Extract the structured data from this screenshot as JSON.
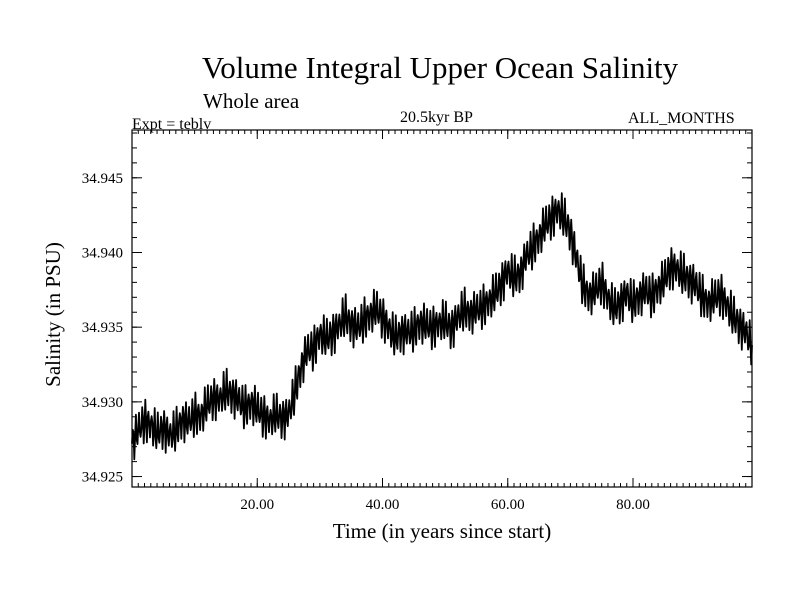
{
  "header": {
    "title": "Volume Integral Upper Ocean Salinity",
    "subtitle": "Whole area",
    "experiment": "Expt = teblv",
    "period": "20.5kyr BP",
    "months": "ALL_MONTHS"
  },
  "chart_data": {
    "type": "line",
    "title": "Volume Integral Upper Ocean Salinity",
    "subtitle": "Whole area",
    "xlabel": "Time (in years since start)",
    "ylabel": "Salinity (in PSU)",
    "xlim": [
      0,
      99
    ],
    "ylim": [
      34.9243,
      34.9482
    ],
    "x_ticks": [
      20,
      40,
      60,
      80
    ],
    "x_tick_labels": [
      "20.00",
      "40.00",
      "60.00",
      "80.00"
    ],
    "y_ticks": [
      34.925,
      34.93,
      34.935,
      34.94,
      34.945
    ],
    "y_tick_labels": [
      "34.925",
      "34.930",
      "34.935",
      "34.940",
      "34.945"
    ],
    "grid": false,
    "line_color": "#000000",
    "series": [
      {
        "name": "Salinity",
        "x": [
          0,
          1,
          2,
          3,
          4,
          5,
          6,
          7,
          8,
          9,
          10,
          11,
          12,
          13,
          14,
          15,
          16,
          17,
          18,
          19,
          20,
          21,
          22,
          23,
          24,
          25,
          26,
          27,
          28,
          29,
          30,
          31,
          32,
          33,
          34,
          35,
          36,
          37,
          38,
          39,
          40,
          41,
          42,
          43,
          44,
          45,
          46,
          47,
          48,
          49,
          50,
          51,
          52,
          53,
          54,
          55,
          56,
          57,
          58,
          59,
          60,
          61,
          62,
          63,
          64,
          65,
          66,
          67,
          68,
          69,
          70,
          71,
          72,
          73,
          74,
          75,
          76,
          77,
          78,
          79,
          80,
          81,
          82,
          83,
          84,
          85,
          86,
          87,
          88,
          89,
          90,
          91,
          92,
          93,
          94,
          95,
          96,
          97,
          98,
          99
        ],
        "values": [
          34.9272,
          34.9281,
          34.9288,
          34.9284,
          34.9279,
          34.9283,
          34.9277,
          34.9281,
          34.9288,
          34.9286,
          34.9292,
          34.929,
          34.9298,
          34.9303,
          34.9301,
          34.9308,
          34.9305,
          34.9301,
          34.9296,
          34.9299,
          34.9295,
          34.9291,
          34.9287,
          34.9292,
          34.9289,
          34.9291,
          34.9307,
          34.9323,
          34.9334,
          34.9336,
          34.9345,
          34.9342,
          34.9346,
          34.935,
          34.9358,
          34.9352,
          34.9349,
          34.9355,
          34.9358,
          34.9362,
          34.9357,
          34.9349,
          34.9343,
          34.9347,
          34.9346,
          34.9348,
          34.9353,
          34.9351,
          34.935,
          34.9352,
          34.9354,
          34.9349,
          34.9356,
          34.9362,
          34.9359,
          34.9361,
          34.9364,
          34.9367,
          34.9372,
          34.938,
          34.9387,
          34.9383,
          34.9386,
          34.9397,
          34.9404,
          34.941,
          34.9418,
          34.9424,
          34.9428,
          34.9423,
          34.9414,
          34.9395,
          34.9378,
          34.9371,
          34.9374,
          34.9381,
          34.9369,
          34.9362,
          34.9367,
          34.9372,
          34.9366,
          34.9371,
          34.9374,
          34.9371,
          34.9376,
          34.9381,
          34.9391,
          34.9388,
          34.9385,
          34.9382,
          34.9378,
          34.9371,
          34.9366,
          34.9369,
          34.9373,
          34.9364,
          34.9357,
          34.9352,
          34.9346,
          34.9338
        ]
      }
    ]
  }
}
